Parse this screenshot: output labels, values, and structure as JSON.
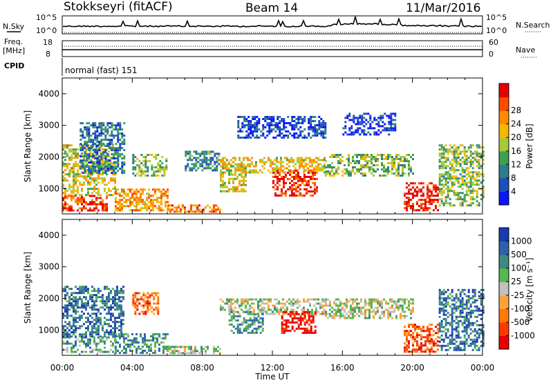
{
  "header": {
    "station": "Stokkseyri (fitACF)",
    "beam": "Beam 14",
    "date": "11/Mar/2016"
  },
  "noise_panel": {
    "left_label": "N.Sky",
    "right_label": "N.Search",
    "left_ticks": [
      "10^5",
      "10^0"
    ],
    "right_ticks": [
      "10^5",
      "10^0"
    ]
  },
  "freq_panel": {
    "label_line1": "Freq.",
    "label_line2": "[MHz]",
    "left_ticks": [
      "18",
      "8"
    ],
    "right_ticks": [
      "60",
      "0"
    ],
    "right_label": "Nave",
    "cpid_label": "CPID",
    "mode_text": "normal (fast) 151"
  },
  "x_axis": {
    "label": "Time UT",
    "ticks": [
      "00:00",
      "04:00",
      "08:00",
      "12:00",
      "16:00",
      "20:00",
      "00:00"
    ]
  },
  "chart_data": [
    {
      "type": "heatmap",
      "name": "power",
      "ylabel": "Slant Range [km]",
      "yticks": [
        "1000",
        "2000",
        "3000",
        "4000"
      ],
      "ylim": [
        200,
        4500
      ],
      "xlim_hours": [
        0,
        24
      ],
      "colorbar": {
        "label": "Power [dB]",
        "ticks": [
          "4",
          "8",
          "12",
          "16",
          "20",
          "24",
          "28"
        ],
        "colors": [
          "#0a14ff",
          "#1d4fb8",
          "#2f7d8c",
          "#3ea04e",
          "#a8c83a",
          "#f5b800",
          "#ff8a00",
          "#ff4a00",
          "#e80000"
        ]
      },
      "regions": [
        {
          "t0": 0.0,
          "t1": 2.5,
          "r0": 300,
          "r1": 800,
          "level": 0.85
        },
        {
          "t0": 0.0,
          "t1": 3.0,
          "r0": 800,
          "r1": 2400,
          "level": 0.55
        },
        {
          "t0": 1.0,
          "t1": 3.5,
          "r0": 1500,
          "r1": 3100,
          "level": 0.25
        },
        {
          "t0": 3.0,
          "t1": 6.0,
          "r0": 300,
          "r1": 1000,
          "level": 0.7
        },
        {
          "t0": 4.0,
          "t1": 6.0,
          "r0": 1400,
          "r1": 2100,
          "level": 0.45
        },
        {
          "t0": 6.0,
          "t1": 9.0,
          "r0": 300,
          "r1": 500,
          "level": 0.75
        },
        {
          "t0": 7.0,
          "t1": 9.0,
          "r0": 1600,
          "r1": 2200,
          "level": 0.3
        },
        {
          "t0": 9.0,
          "t1": 10.5,
          "r0": 900,
          "r1": 1800,
          "level": 0.55
        },
        {
          "t0": 9.0,
          "t1": 15.0,
          "r0": 1500,
          "r1": 2000,
          "level": 0.6
        },
        {
          "t0": 12.0,
          "t1": 14.5,
          "r0": 800,
          "r1": 1600,
          "level": 0.9
        },
        {
          "t0": 10.0,
          "t1": 15.0,
          "r0": 2600,
          "r1": 3300,
          "level": 0.15
        },
        {
          "t0": 15.0,
          "t1": 20.0,
          "r0": 1400,
          "r1": 2100,
          "level": 0.45
        },
        {
          "t0": 16.0,
          "t1": 19.0,
          "r0": 2700,
          "r1": 3400,
          "level": 0.1
        },
        {
          "t0": 19.5,
          "t1": 21.5,
          "r0": 300,
          "r1": 1200,
          "level": 0.95
        },
        {
          "t0": 21.5,
          "t1": 24.0,
          "r0": 500,
          "r1": 2400,
          "level": 0.45
        }
      ]
    },
    {
      "type": "heatmap",
      "name": "velocity",
      "ylabel": "Slant Range [km]",
      "yticks": [
        "1000",
        "2000",
        "3000",
        "4000"
      ],
      "ylim": [
        200,
        4500
      ],
      "xlim_hours": [
        0,
        24
      ],
      "colorbar": {
        "label": "Velocity [m s⁻¹]",
        "ticks": [
          "1000",
          "500",
          "100",
          "25",
          "-25",
          "-100",
          "-500",
          "-1000"
        ],
        "colors": [
          "#1a3bb0",
          "#2e62a8",
          "#3d8a80",
          "#55b84a",
          "#c0c0bc",
          "#ffa23a",
          "#ff7a00",
          "#ff3800",
          "#e80000"
        ]
      },
      "regions": [
        {
          "t0": 0.0,
          "t1": 3.0,
          "r0": 300,
          "r1": 800,
          "level": 0.35
        },
        {
          "t0": 0.0,
          "t1": 3.5,
          "r0": 800,
          "r1": 2400,
          "level": 0.2
        },
        {
          "t0": 3.0,
          "t1": 6.0,
          "r0": 300,
          "r1": 900,
          "level": 0.3
        },
        {
          "t0": 4.0,
          "t1": 5.5,
          "r0": 1500,
          "r1": 2200,
          "level": 0.75
        },
        {
          "t0": 6.0,
          "t1": 9.0,
          "r0": 300,
          "r1": 500,
          "level": 0.45
        },
        {
          "t0": 9.0,
          "t1": 15.0,
          "r0": 1500,
          "r1": 2000,
          "level": 0.48
        },
        {
          "t0": 9.5,
          "t1": 11.5,
          "r0": 900,
          "r1": 1600,
          "level": 0.3
        },
        {
          "t0": 12.5,
          "t1": 14.5,
          "r0": 900,
          "r1": 1600,
          "level": 0.95
        },
        {
          "t0": 15.0,
          "t1": 20.0,
          "r0": 1400,
          "r1": 2000,
          "level": 0.48
        },
        {
          "t0": 19.5,
          "t1": 21.5,
          "r0": 300,
          "r1": 1200,
          "level": 0.8
        },
        {
          "t0": 21.5,
          "t1": 24.0,
          "r0": 400,
          "r1": 2300,
          "level": 0.2
        }
      ]
    }
  ]
}
